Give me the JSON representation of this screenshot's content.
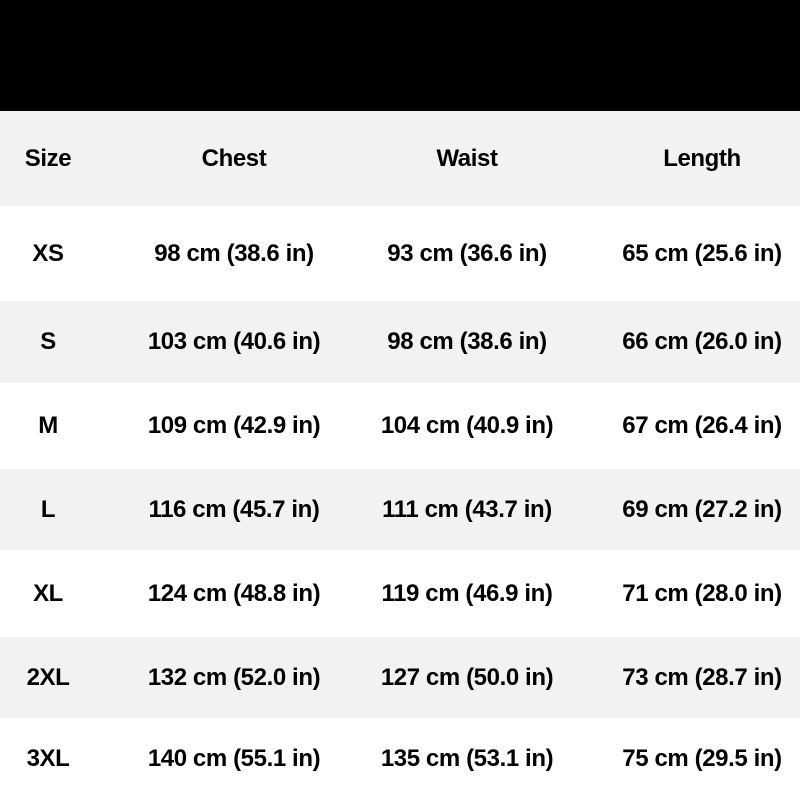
{
  "table": {
    "headers": [
      "Size",
      "Chest",
      "Waist",
      "Length"
    ],
    "rows": [
      [
        "XS",
        "98 cm (38.6 in)",
        "93 cm (36.6 in)",
        "65 cm (25.6 in)"
      ],
      [
        "S",
        "103 cm (40.6 in)",
        "98 cm (38.6 in)",
        "66 cm (26.0 in)"
      ],
      [
        "M",
        "109 cm (42.9 in)",
        "104 cm (40.9 in)",
        "67 cm (26.4 in)"
      ],
      [
        "L",
        "116 cm (45.7 in)",
        "111 cm (43.7 in)",
        "69 cm (27.2 in)"
      ],
      [
        "XL",
        "124 cm (48.8 in)",
        "119 cm (46.9 in)",
        "71 cm (28.0 in)"
      ],
      [
        "2XL",
        "132 cm (52.0 in)",
        "127 cm (50.0 in)",
        "73 cm (28.7 in)"
      ],
      [
        "3XL",
        "140 cm (55.1 in)",
        "135 cm (53.1 in)",
        "75 cm (29.5 in)"
      ]
    ]
  },
  "colors": {
    "banner": "#000000",
    "stripe": "#f2f2f2",
    "row": "#ffffff",
    "text": "#000000"
  }
}
